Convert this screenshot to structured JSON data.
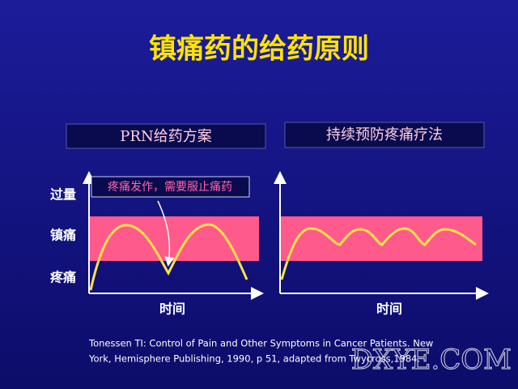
{
  "title": "镇痛药的给药原则",
  "panels": [
    {
      "header": "PRN给药方案",
      "x_label": "时间"
    },
    {
      "header": "持续预防疼痛疗法",
      "x_label": "时间"
    }
  ],
  "y_levels": [
    "过量",
    "镇痛",
    "疼痛"
  ],
  "annotation": "疼痛发作，需要服止痛药",
  "citation": [
    "Tonessen TI: Control of Pain and Other Symptoms in Cancer Patients. New",
    "York, Hemisphere Publishing, 1990, p 51, adapted from Twycross,1984."
  ],
  "watermark": "DXYE.COM"
}
